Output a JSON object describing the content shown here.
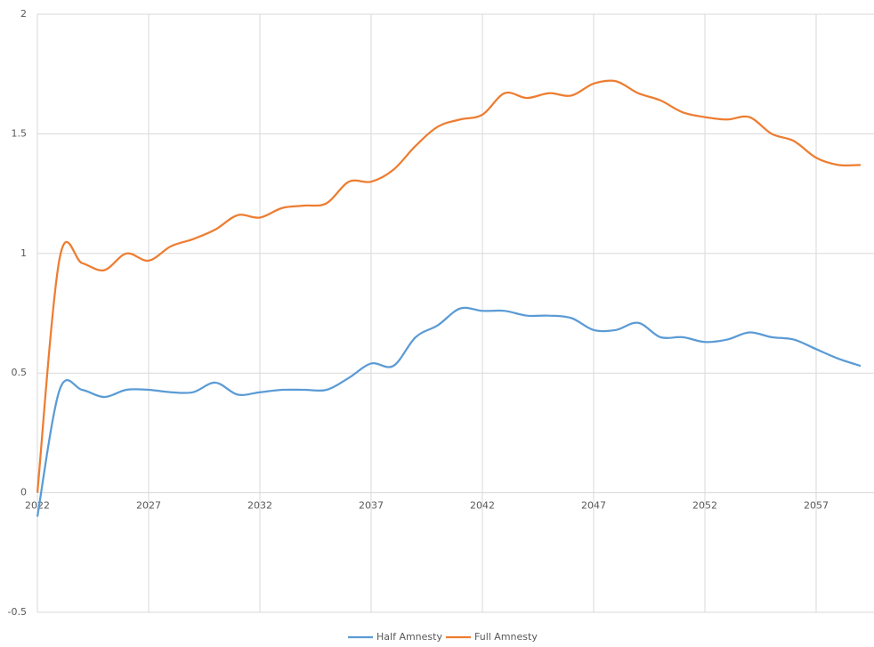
{
  "chart_data": {
    "type": "line",
    "x": [
      2022,
      2023,
      2024,
      2025,
      2026,
      2027,
      2028,
      2029,
      2030,
      2031,
      2032,
      2033,
      2034,
      2035,
      2036,
      2037,
      2038,
      2039,
      2040,
      2041,
      2042,
      2043,
      2044,
      2045,
      2046,
      2047,
      2048,
      2049,
      2050,
      2051,
      2052,
      2053,
      2054,
      2055,
      2056,
      2057,
      2058,
      2059
    ],
    "series": [
      {
        "name": "Half Amnesty",
        "color": "#5b9bd5",
        "values": [
          -0.1,
          0.43,
          0.43,
          0.4,
          0.43,
          0.43,
          0.42,
          0.42,
          0.46,
          0.41,
          0.42,
          0.43,
          0.43,
          0.43,
          0.48,
          0.54,
          0.53,
          0.65,
          0.7,
          0.77,
          0.76,
          0.76,
          0.74,
          0.74,
          0.73,
          0.68,
          0.68,
          0.71,
          0.65,
          0.65,
          0.63,
          0.64,
          0.67,
          0.65,
          0.64,
          0.6,
          0.56,
          0.53
        ]
      },
      {
        "name": "Full Amnesty",
        "color": "#ed7d31",
        "values": [
          0,
          0.98,
          0.96,
          0.93,
          1.0,
          0.97,
          1.03,
          1.06,
          1.1,
          1.16,
          1.15,
          1.19,
          1.2,
          1.21,
          1.3,
          1.3,
          1.35,
          1.45,
          1.53,
          1.56,
          1.58,
          1.67,
          1.65,
          1.67,
          1.66,
          1.71,
          1.72,
          1.67,
          1.64,
          1.59,
          1.57,
          1.56,
          1.57,
          1.5,
          1.47,
          1.4,
          1.37,
          1.37
        ]
      }
    ],
    "xlim": [
      2022,
      2059.6
    ],
    "xticks": [
      2022,
      2027,
      2032,
      2037,
      2042,
      2047,
      2052,
      2057
    ],
    "ylim": [
      -0.5,
      2
    ],
    "yticks": [
      -0.5,
      0,
      0.5,
      1,
      1.5,
      2
    ],
    "grid": true,
    "legend": "bottom"
  }
}
